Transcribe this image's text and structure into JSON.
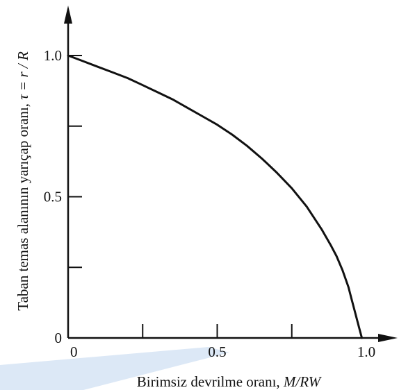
{
  "colors": {
    "ink": "#111111",
    "background": "#ffffff",
    "watermark": "#d6e4f4"
  },
  "chart_data": {
    "type": "line",
    "title": "",
    "xlabel_text": "Birimsiz devrilme oranı, ",
    "xlabel_math": "M/RW",
    "ylabel_text": "Taban temas alanının yarıçap oranı, ",
    "ylabel_math": "τ = r / R",
    "xlim": [
      0,
      1.0
    ],
    "ylim": [
      0,
      1.0
    ],
    "grid": false,
    "legend": "none",
    "x_tick_labels": [
      "0",
      "0.5",
      "1.0"
    ],
    "y_tick_labels": [
      "0",
      "0.5",
      "1.0"
    ],
    "x_minor_ticks": [
      0.25,
      0.75
    ],
    "y_minor_ticks": [
      0.25,
      0.75
    ],
    "series": [
      {
        "x": [
          0,
          0.05,
          0.1,
          0.15,
          0.2,
          0.25,
          0.3,
          0.35,
          0.4,
          0.45,
          0.5,
          0.55,
          0.6,
          0.65,
          0.7,
          0.75,
          0.8,
          0.85,
          0.88,
          0.9,
          0.92,
          0.94,
          0.95,
          0.96,
          0.97,
          0.98,
          0.985
        ],
        "y": [
          1.0,
          0.98,
          0.96,
          0.94,
          0.92,
          0.895,
          0.87,
          0.845,
          0.815,
          0.785,
          0.755,
          0.72,
          0.68,
          0.635,
          0.585,
          0.53,
          0.465,
          0.385,
          0.33,
          0.29,
          0.24,
          0.18,
          0.14,
          0.1,
          0.06,
          0.02,
          0.0
        ]
      }
    ]
  }
}
